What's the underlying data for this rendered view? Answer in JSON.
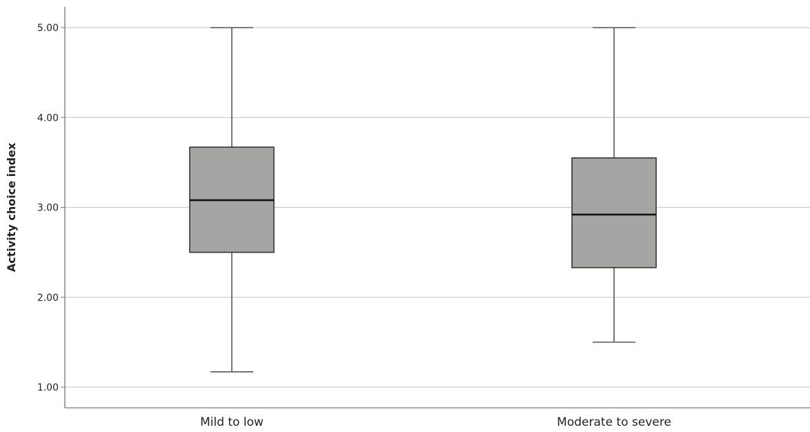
{
  "chart_data": {
    "type": "boxplot",
    "ylabel": "Activity choice index",
    "xlabel": "",
    "ylim": [
      0.8,
      5.2
    ],
    "yticks": [
      "1.00",
      "2.00",
      "3.00",
      "4.00",
      "5.00"
    ],
    "grid": true,
    "categories": [
      "Mild to low",
      "Moderate to severe"
    ],
    "boxes": [
      {
        "category": "Mild to low",
        "whisker_low": 1.17,
        "q1": 2.5,
        "median": 3.08,
        "q3": 3.67,
        "whisker_high": 5.0
      },
      {
        "category": "Moderate to severe",
        "whisker_low": 1.5,
        "q1": 2.33,
        "median": 2.92,
        "q3": 3.55,
        "whisker_high": 5.0
      }
    ],
    "colors": {
      "box_fill": "#a5a5a4",
      "box_stroke": "#333333",
      "median": "#111111",
      "whisker": "#555555",
      "grid": "#cccccc",
      "axis": "#777777"
    }
  }
}
